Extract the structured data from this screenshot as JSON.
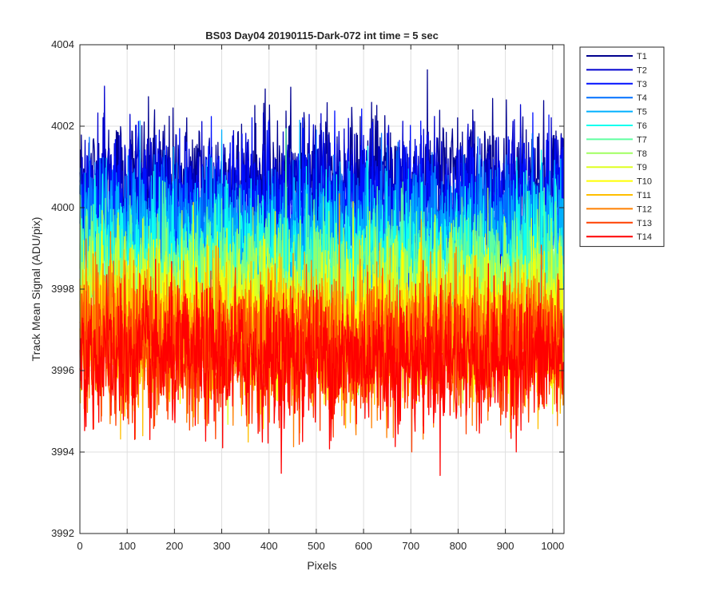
{
  "chart_data": {
    "type": "line",
    "title": "BS03 Day04 20190115-Dark-072 int time = 5 sec",
    "xlabel": "Pixels",
    "ylabel": "Track Mean Signal (ADU/pix)",
    "xlim": [
      0,
      1024
    ],
    "ylim": [
      3992,
      4004
    ],
    "xticks": [
      0,
      100,
      200,
      300,
      400,
      500,
      600,
      700,
      800,
      900,
      1000
    ],
    "yticks": [
      3992,
      3994,
      3996,
      3998,
      4000,
      4002,
      4004
    ],
    "grid": true,
    "legend_position": "outside-top-right",
    "x_points": 1024,
    "series": [
      {
        "name": "T1",
        "mean": 4000.6,
        "noise_sd": 0.85,
        "color": "#00008f"
      },
      {
        "name": "T2",
        "mean": 4000.3,
        "noise_sd": 0.85,
        "color": "#0000cf"
      },
      {
        "name": "T3",
        "mean": 3999.9,
        "noise_sd": 0.85,
        "color": "#0010ff"
      },
      {
        "name": "T4",
        "mean": 3999.5,
        "noise_sd": 0.85,
        "color": "#0070ff"
      },
      {
        "name": "T5",
        "mean": 3999.1,
        "noise_sd": 0.85,
        "color": "#00b0ff"
      },
      {
        "name": "T6",
        "mean": 3998.7,
        "noise_sd": 0.85,
        "color": "#10ffef"
      },
      {
        "name": "T7",
        "mean": 3998.3,
        "noise_sd": 0.85,
        "color": "#60ffa0"
      },
      {
        "name": "T8",
        "mean": 3997.9,
        "noise_sd": 0.85,
        "color": "#a0ff60"
      },
      {
        "name": "T9",
        "mean": 3997.5,
        "noise_sd": 0.85,
        "color": "#dfff20"
      },
      {
        "name": "T10",
        "mean": 3997.1,
        "noise_sd": 0.85,
        "color": "#ffff00"
      },
      {
        "name": "T11",
        "mean": 3996.9,
        "noise_sd": 0.85,
        "color": "#ffbf00"
      },
      {
        "name": "T12",
        "mean": 3996.7,
        "noise_sd": 0.85,
        "color": "#ff8000"
      },
      {
        "name": "T13",
        "mean": 3996.5,
        "noise_sd": 0.85,
        "color": "#ff4000"
      },
      {
        "name": "T14",
        "mean": 3996.3,
        "noise_sd": 0.85,
        "color": "#ff0000"
      }
    ]
  }
}
